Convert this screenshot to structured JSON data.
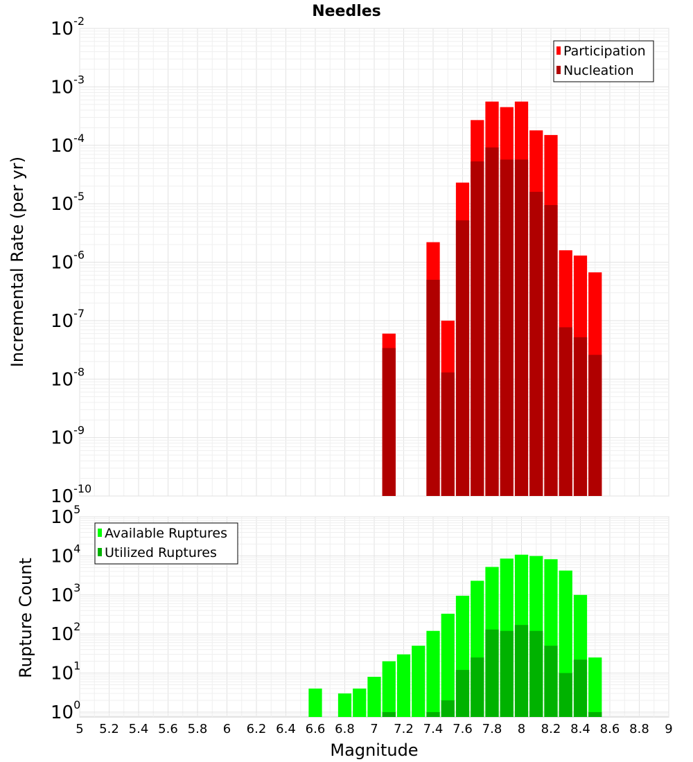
{
  "chart_data": [
    {
      "type": "bar",
      "title": "Needles",
      "ylabel": "Incremental Rate (per yr)",
      "xlabel": "",
      "yscale": "log",
      "ylim": [
        1e-10,
        0.01
      ],
      "xlim": [
        5,
        9
      ],
      "ytick_base": "10",
      "ytick_exponents": [
        -10,
        -9,
        -8,
        -7,
        -6,
        -5,
        -4,
        -3,
        -2
      ],
      "legend_position": "top-right",
      "bin_width": 0.1,
      "series": [
        {
          "name": "Participation",
          "color": "#ff0000",
          "x": [
            7.1,
            7.4,
            7.5,
            7.6,
            7.7,
            7.8,
            7.9,
            8.0,
            8.1,
            8.2,
            8.3,
            8.4,
            8.5
          ],
          "values": [
            6e-08,
            2.2e-06,
            1e-07,
            2.3e-05,
            0.00027,
            0.00056,
            0.00045,
            0.00056,
            0.00018,
            0.00015,
            1.6e-06,
            1.3e-06,
            6.7e-07
          ]
        },
        {
          "name": "Nucleation",
          "color": "#b00000",
          "x": [
            7.1,
            7.4,
            7.5,
            7.6,
            7.7,
            7.8,
            7.9,
            8.0,
            8.1,
            8.2,
            8.3,
            8.4,
            8.5
          ],
          "values": [
            3.4e-08,
            5e-07,
            1.3e-08,
            5.2e-06,
            5.3e-05,
            9.2e-05,
            5.7e-05,
            5.7e-05,
            1.6e-05,
            9.5e-06,
            7.7e-08,
            5.2e-08,
            2.6e-08
          ]
        }
      ]
    },
    {
      "type": "bar",
      "title": "",
      "ylabel": "Rupture Count",
      "xlabel": "Magnitude",
      "yscale": "log",
      "ylim": [
        0.75,
        100000
      ],
      "xlim": [
        5,
        9
      ],
      "ytick_base": "10",
      "ytick_exponents": [
        0,
        1,
        2,
        3,
        4,
        5
      ],
      "xticks": [
        "5",
        "5.2",
        "5.4",
        "5.6",
        "5.8",
        "6",
        "6.2",
        "6.4",
        "6.6",
        "6.8",
        "7",
        "7.2",
        "7.4",
        "7.6",
        "7.8",
        "8",
        "8.2",
        "8.4",
        "8.6",
        "8.8",
        "9"
      ],
      "legend_position": "top-left",
      "bin_width": 0.1,
      "series": [
        {
          "name": "Available Ruptures",
          "color": "#00ff00",
          "x": [
            6.6,
            6.8,
            6.9,
            7.0,
            7.1,
            7.2,
            7.3,
            7.4,
            7.5,
            7.6,
            7.7,
            7.8,
            7.9,
            8.0,
            8.1,
            8.2,
            8.3,
            8.4,
            8.5
          ],
          "values": [
            4,
            3,
            4,
            8,
            20,
            30,
            50,
            120,
            330,
            950,
            2300,
            5200,
            8500,
            10700,
            9900,
            8200,
            4200,
            1000,
            25
          ]
        },
        {
          "name": "Utilized Ruptures",
          "color": "#00b200",
          "x": [
            7.1,
            7.4,
            7.5,
            7.6,
            7.7,
            7.8,
            7.9,
            8.0,
            8.1,
            8.2,
            8.3,
            8.4,
            8.5
          ],
          "values": [
            1,
            1,
            2,
            12,
            25,
            130,
            120,
            170,
            120,
            50,
            10,
            22,
            1
          ]
        }
      ]
    }
  ]
}
